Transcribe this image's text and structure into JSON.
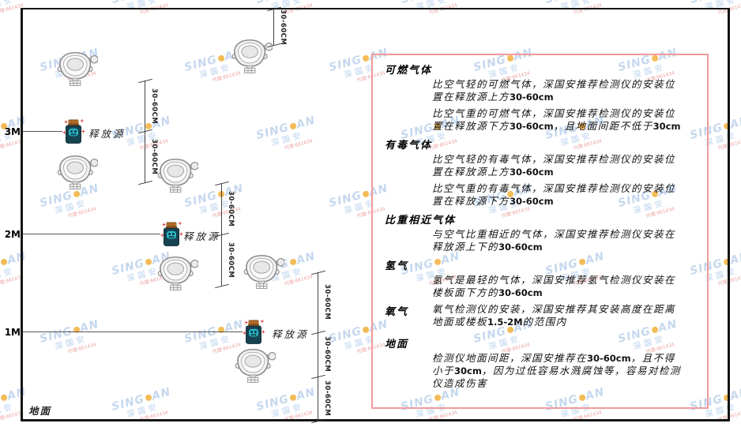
{
  "watermark": {
    "brand_prefix": "SING",
    "brand_suffix": "AN",
    "brand_sub": "深国安",
    "contact": "代理:661434"
  },
  "diagram": {
    "dim_label": "30-60CM",
    "source_label": "释放源",
    "ground_label": "地面",
    "levels": [
      {
        "label": "3M"
      },
      {
        "label": "2M"
      },
      {
        "label": "1M"
      }
    ]
  },
  "panel": {
    "sections": [
      {
        "heading": "可燃气体",
        "paragraphs": [
          [
            {
              "t": "比空气轻的可燃气体，深国安推荐检测仪的安装位置在释放源上方"
            },
            {
              "t": "30-60cm",
              "b": true
            }
          ],
          [
            {
              "t": "比空气重的可燃气体，深国安推荐检测仪的安装位置在释放源下方"
            },
            {
              "t": "30-60cm",
              "b": true
            },
            {
              "t": "，且地面间距不低于"
            },
            {
              "t": "30cm",
              "b": true
            }
          ]
        ]
      },
      {
        "heading": "有毒气体",
        "paragraphs": [
          [
            {
              "t": "比空气轻的有毒气体，深国安推荐检测仪的安装位置在释放源上方"
            },
            {
              "t": "30-60cm",
              "b": true
            }
          ],
          [
            {
              "t": "比空气重的有毒气体，深国安推荐检测仪的安装位置在释放源下方"
            },
            {
              "t": "30-60cm",
              "b": true
            }
          ]
        ]
      },
      {
        "heading": "比重相近气体",
        "paragraphs": [
          [
            {
              "t": "与空气比重相近的气体，深国安推荐检测仪安装在释放源上下的"
            },
            {
              "t": "30-60cm",
              "b": true
            }
          ]
        ]
      },
      {
        "heading": "氢气",
        "paragraphs": [
          [
            {
              "t": "氢气是最轻的气体，深国安推荐氢气检测仪安装在楼板面下方的"
            },
            {
              "t": "30-60cm",
              "b": true
            }
          ]
        ]
      },
      {
        "heading": "氧气",
        "inline": true,
        "paragraphs": [
          [
            {
              "t": "氧气检测仪的安装，深国安推荐其安装高度在距离地面或楼板"
            },
            {
              "t": "1.5-2M",
              "b": true
            },
            {
              "t": "的范围内"
            }
          ]
        ]
      },
      {
        "heading": "地面",
        "paragraphs": [
          [
            {
              "t": "检测仪地面间距，深国安推荐在"
            },
            {
              "t": "30-60cm",
              "b": true
            },
            {
              "t": "，且不得小于"
            },
            {
              "t": "30cm",
              "b": true
            },
            {
              "t": "，因为过低容易水溅腐蚀等，容易对检测仪造成伤害"
            }
          ]
        ]
      }
    ]
  }
}
